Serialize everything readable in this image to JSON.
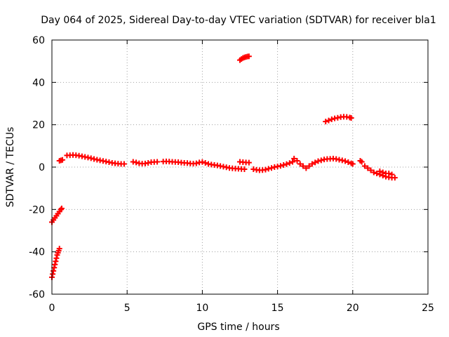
{
  "chart_data": {
    "type": "scatter",
    "title": "Day 064 of 2025, Sidereal Day-to-day VTEC variation (SDTVAR) for receiver bla1",
    "xlabel": "GPS time / hours",
    "ylabel": "SDTVAR / TECUs",
    "xlim": [
      0,
      25
    ],
    "ylim": [
      -60,
      60
    ],
    "xticks": [
      "0",
      "5",
      "10",
      "15",
      "20",
      "25"
    ],
    "yticks": [
      "-60",
      "-40",
      "-20",
      "0",
      "20",
      "40",
      "60"
    ],
    "grid": true,
    "marker": "plus",
    "color": "#ff0000",
    "series": [
      {
        "name": "SDTVAR",
        "points": [
          [
            0.0,
            -52.0
          ],
          [
            0.05,
            -50.5
          ],
          [
            0.1,
            -49.0
          ],
          [
            0.15,
            -47.5
          ],
          [
            0.2,
            -46.0
          ],
          [
            0.25,
            -44.5
          ],
          [
            0.3,
            -43.0
          ],
          [
            0.35,
            -41.5
          ],
          [
            0.4,
            -40.5
          ],
          [
            0.45,
            -39.5
          ],
          [
            0.5,
            -38.5
          ],
          [
            0.0,
            -26.0
          ],
          [
            0.1,
            -25.0
          ],
          [
            0.2,
            -24.0
          ],
          [
            0.3,
            -23.0
          ],
          [
            0.4,
            -22.0
          ],
          [
            0.5,
            -21.0
          ],
          [
            0.6,
            -20.0
          ],
          [
            0.65,
            -19.5
          ],
          [
            0.5,
            3.0
          ],
          [
            0.6,
            3.2
          ],
          [
            0.7,
            3.4
          ],
          [
            1.0,
            5.5
          ],
          [
            1.2,
            5.6
          ],
          [
            1.4,
            5.7
          ],
          [
            1.6,
            5.6
          ],
          [
            1.8,
            5.4
          ],
          [
            2.0,
            5.1
          ],
          [
            2.2,
            4.8
          ],
          [
            2.4,
            4.5
          ],
          [
            2.6,
            4.2
          ],
          [
            2.8,
            3.8
          ],
          [
            3.0,
            3.5
          ],
          [
            3.2,
            3.2
          ],
          [
            3.4,
            2.9
          ],
          [
            3.6,
            2.6
          ],
          [
            3.8,
            2.3
          ],
          [
            4.0,
            2.0
          ],
          [
            4.2,
            1.8
          ],
          [
            4.4,
            1.6
          ],
          [
            4.6,
            1.5
          ],
          [
            4.8,
            1.5
          ],
          [
            5.4,
            2.5
          ],
          [
            5.6,
            2.2
          ],
          [
            5.8,
            1.8
          ],
          [
            6.0,
            1.6
          ],
          [
            6.2,
            1.7
          ],
          [
            6.4,
            2.0
          ],
          [
            6.6,
            2.3
          ],
          [
            6.8,
            2.4
          ],
          [
            7.0,
            2.5
          ],
          [
            7.4,
            2.6
          ],
          [
            7.6,
            2.7
          ],
          [
            7.8,
            2.6
          ],
          [
            8.0,
            2.5
          ],
          [
            8.2,
            2.4
          ],
          [
            8.4,
            2.3
          ],
          [
            8.6,
            2.1
          ],
          [
            8.8,
            2.0
          ],
          [
            9.0,
            1.9
          ],
          [
            9.2,
            1.7
          ],
          [
            9.4,
            1.6
          ],
          [
            9.6,
            1.8
          ],
          [
            9.8,
            2.2
          ],
          [
            10.0,
            2.4
          ],
          [
            10.2,
            2.0
          ],
          [
            10.4,
            1.5
          ],
          [
            10.6,
            1.2
          ],
          [
            10.8,
            1.0
          ],
          [
            11.0,
            0.8
          ],
          [
            11.2,
            0.5
          ],
          [
            11.4,
            0.2
          ],
          [
            11.6,
            -0.1
          ],
          [
            11.8,
            -0.4
          ],
          [
            12.0,
            -0.6
          ],
          [
            12.2,
            -0.7
          ],
          [
            12.4,
            -0.8
          ],
          [
            12.6,
            -0.9
          ],
          [
            12.8,
            -1.0
          ],
          [
            12.5,
            2.5
          ],
          [
            12.7,
            2.3
          ],
          [
            12.9,
            2.2
          ],
          [
            13.1,
            2.1
          ],
          [
            12.5,
            50.5
          ],
          [
            12.6,
            51.0
          ],
          [
            12.7,
            51.5
          ],
          [
            12.8,
            51.8
          ],
          [
            12.9,
            52.0
          ],
          [
            13.0,
            52.2
          ],
          [
            13.1,
            52.3
          ],
          [
            13.4,
            -1.0
          ],
          [
            13.6,
            -1.3
          ],
          [
            13.8,
            -1.5
          ],
          [
            14.0,
            -1.4
          ],
          [
            14.2,
            -1.2
          ],
          [
            14.4,
            -0.8
          ],
          [
            14.6,
            -0.4
          ],
          [
            14.8,
            0.0
          ],
          [
            15.0,
            0.3
          ],
          [
            15.2,
            0.6
          ],
          [
            15.4,
            1.0
          ],
          [
            15.6,
            1.4
          ],
          [
            15.8,
            1.9
          ],
          [
            16.0,
            2.5
          ],
          [
            16.1,
            4.0
          ],
          [
            16.3,
            3.0
          ],
          [
            16.5,
            1.5
          ],
          [
            16.7,
            0.5
          ],
          [
            16.9,
            -0.5
          ],
          [
            17.1,
            0.5
          ],
          [
            17.3,
            1.5
          ],
          [
            17.5,
            2.2
          ],
          [
            17.7,
            2.8
          ],
          [
            17.9,
            3.2
          ],
          [
            18.1,
            3.6
          ],
          [
            18.3,
            3.8
          ],
          [
            18.5,
            3.9
          ],
          [
            18.7,
            4.0
          ],
          [
            18.9,
            3.8
          ],
          [
            19.1,
            3.5
          ],
          [
            19.3,
            3.2
          ],
          [
            19.5,
            2.8
          ],
          [
            19.7,
            2.3
          ],
          [
            19.9,
            1.8
          ],
          [
            20.0,
            1.5
          ],
          [
            20.5,
            3.0
          ],
          [
            20.6,
            2.5
          ],
          [
            20.8,
            0.5
          ],
          [
            21.0,
            -0.5
          ],
          [
            21.2,
            -1.5
          ],
          [
            21.4,
            -2.5
          ],
          [
            21.6,
            -3.0
          ],
          [
            21.8,
            -3.5
          ],
          [
            22.0,
            -4.0
          ],
          [
            22.2,
            -4.5
          ],
          [
            22.4,
            -4.8
          ],
          [
            22.6,
            -5.0
          ],
          [
            22.8,
            -5.0
          ],
          [
            21.8,
            -2.0
          ],
          [
            22.0,
            -2.5
          ],
          [
            22.2,
            -3.0
          ],
          [
            22.4,
            -3.0
          ],
          [
            22.6,
            -3.5
          ],
          [
            18.2,
            21.5
          ],
          [
            18.4,
            22.0
          ],
          [
            18.6,
            22.6
          ],
          [
            18.8,
            23.0
          ],
          [
            19.0,
            23.3
          ],
          [
            19.2,
            23.6
          ],
          [
            19.4,
            23.8
          ],
          [
            19.6,
            23.7
          ],
          [
            19.8,
            23.4
          ],
          [
            19.9,
            23.2
          ]
        ]
      }
    ]
  }
}
